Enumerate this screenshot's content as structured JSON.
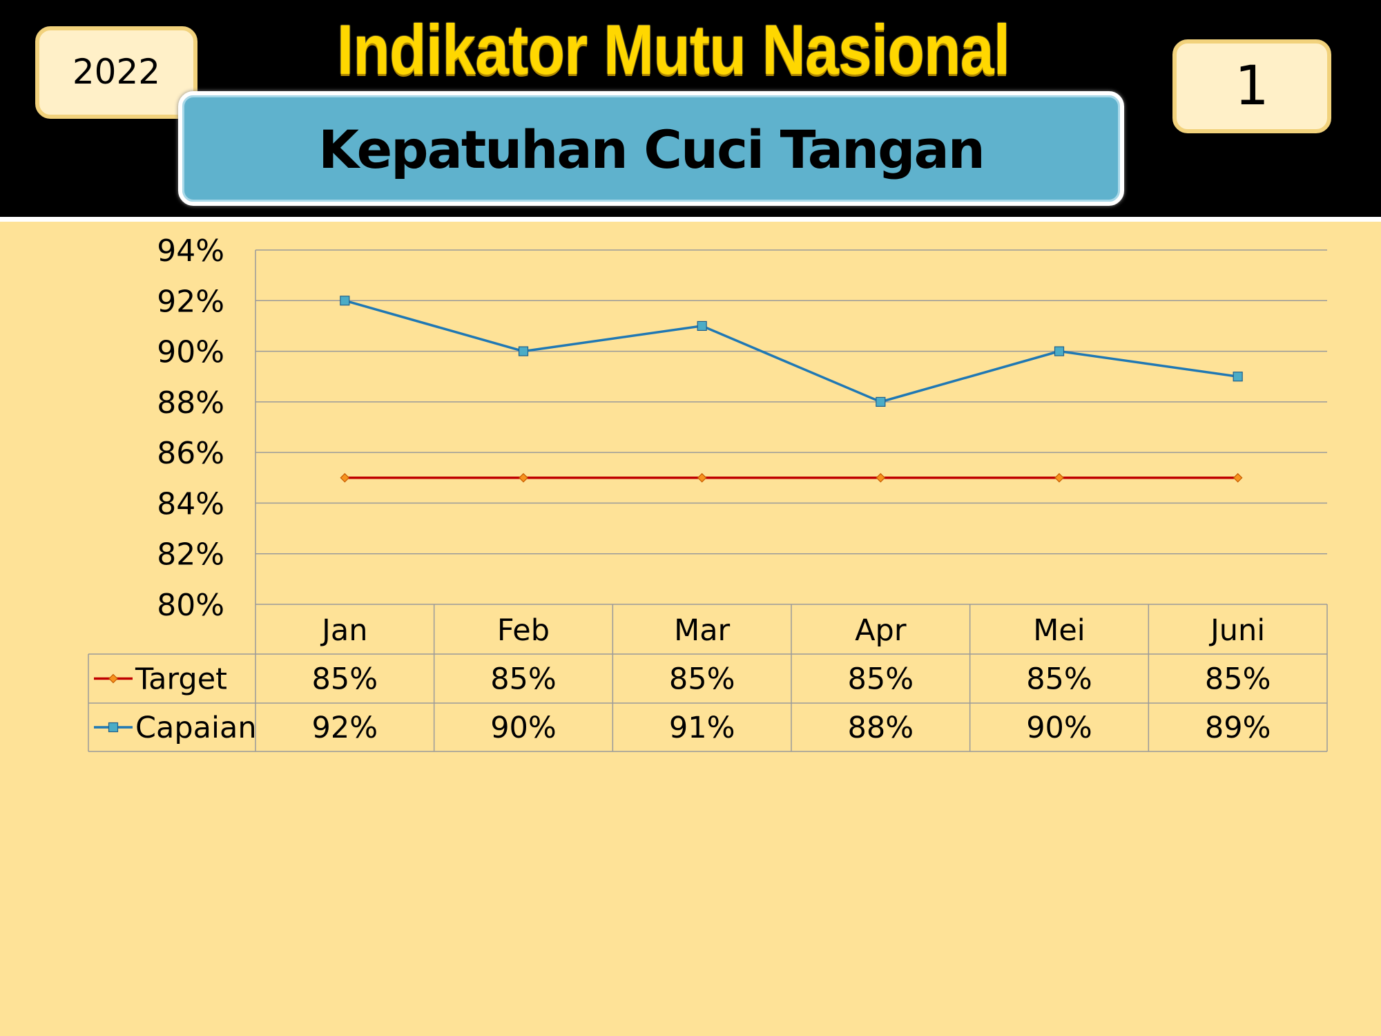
{
  "header": {
    "title": "Indikator Mutu Nasional",
    "subtitle": "Kepatuhan Cuci Tangan",
    "year": "2022",
    "slide_number": "1"
  },
  "colors": {
    "background": "#FEE297",
    "target_line": "#C00000",
    "target_marker": "#F7931E",
    "capaian_line": "#1F78B4",
    "capaian_marker": "#4BACC6",
    "grid": "#9A9A9A"
  },
  "chart_data": {
    "type": "line",
    "categories": [
      "Jan",
      "Feb",
      "Mar",
      "Apr",
      "Mei",
      "Juni"
    ],
    "series": [
      {
        "name": "Target",
        "values": [
          85,
          85,
          85,
          85,
          85,
          85
        ],
        "labels": [
          "85%",
          "85%",
          "85%",
          "85%",
          "85%",
          "85%"
        ],
        "marker": "diamond"
      },
      {
        "name": "Capaian",
        "values": [
          92,
          90,
          91,
          88,
          90,
          89
        ],
        "labels": [
          "92%",
          "90%",
          "91%",
          "88%",
          "90%",
          "89%"
        ],
        "marker": "square"
      }
    ],
    "ylim": [
      80,
      94
    ],
    "yticks": [
      "80%",
      "82%",
      "84%",
      "86%",
      "88%",
      "90%",
      "92%",
      "94%"
    ],
    "grid": true,
    "legend": "data-table"
  }
}
